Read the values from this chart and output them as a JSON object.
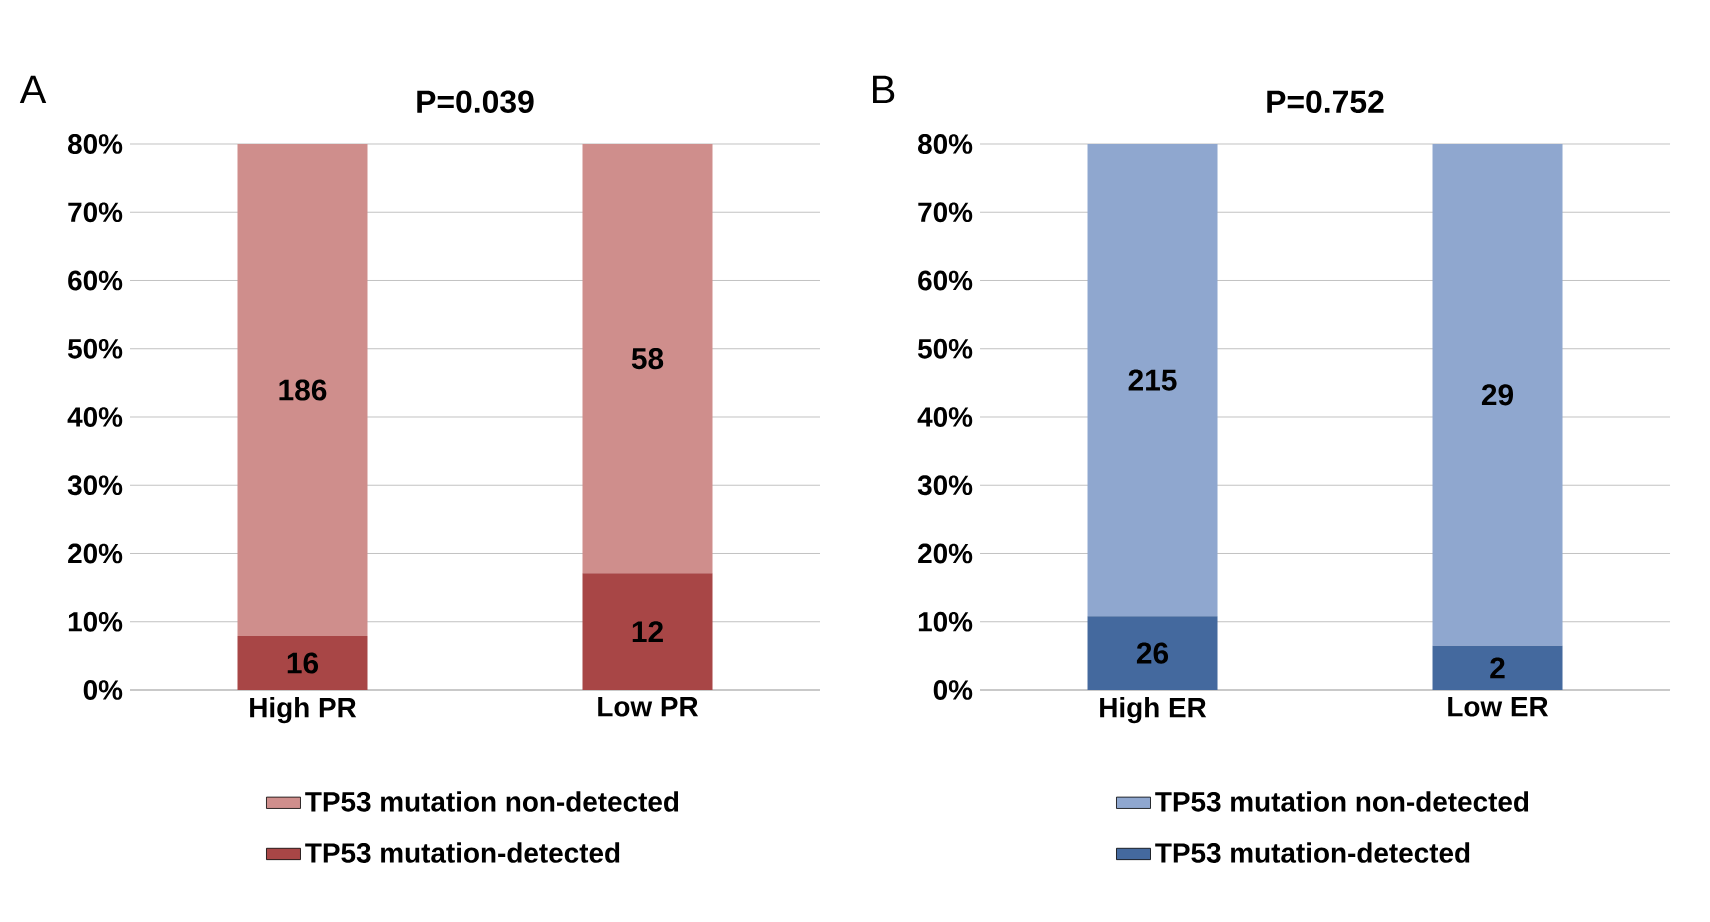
{
  "chart_data": [
    {
      "type": "bar",
      "stacked": true,
      "title": "P=0.039",
      "categories": [
        "High PR",
        "Low PR"
      ],
      "annotations": [
        "A",
        "16",
        "12",
        "186",
        "58"
      ],
      "series": [
        {
          "name": "TP53 mutation-detected",
          "color": "#a84646",
          "values": [
            7.9,
            17.1
          ]
        },
        {
          "name": "TP53 mutation non-detected",
          "color": "#cf8e8c",
          "values": [
            72.1,
            62.9
          ]
        }
      ],
      "ylim": [
        0,
        80
      ],
      "yticks": [
        {
          "value": 0,
          "label": "0%"
        },
        {
          "value": 10,
          "label": "10%"
        },
        {
          "value": 20,
          "label": "20%"
        },
        {
          "value": 30,
          "label": "30%"
        },
        {
          "value": 40,
          "label": "40%"
        },
        {
          "value": 50,
          "label": "50%"
        },
        {
          "value": 60,
          "label": "60%"
        },
        {
          "value": 70,
          "label": "70%"
        },
        {
          "value": 80,
          "label": "80%"
        }
      ],
      "grid": "y",
      "legend": "bottom"
    },
    {
      "type": "bar",
      "stacked": true,
      "title": "P=0.752",
      "categories": [
        "High ER",
        "Low ER"
      ],
      "annotations": [
        "B",
        "26",
        "2",
        "215",
        "29"
      ],
      "series": [
        {
          "name": "TP53 mutation-detected",
          "color": "#44699e",
          "values": [
            10.8,
            6.5
          ]
        },
        {
          "name": "TP53 mutation non-detected",
          "color": "#8fa7cf",
          "values": [
            69.2,
            73.5
          ]
        }
      ],
      "ylim": [
        0,
        80
      ],
      "yticks": [
        {
          "value": 0,
          "label": "0%"
        },
        {
          "value": 10,
          "label": "10%"
        },
        {
          "value": 20,
          "label": "20%"
        },
        {
          "value": 30,
          "label": "30%"
        },
        {
          "value": 40,
          "label": "40%"
        },
        {
          "value": 50,
          "label": "50%"
        },
        {
          "value": 60,
          "label": "60%"
        },
        {
          "value": 70,
          "label": "70%"
        },
        {
          "value": 80,
          "label": "80%"
        }
      ],
      "grid": "y",
      "legend": "bottom"
    }
  ]
}
